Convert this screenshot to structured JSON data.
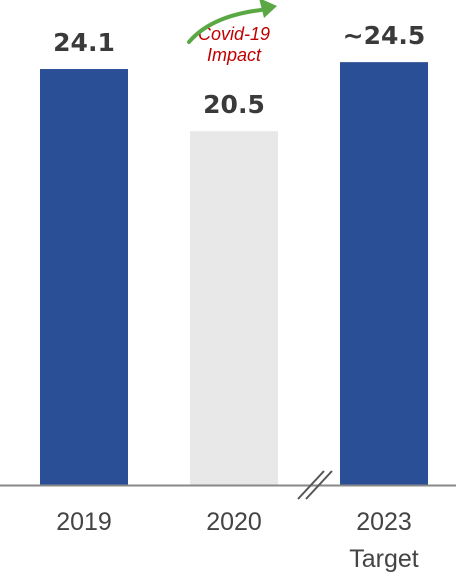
{
  "chart_data": {
    "type": "bar",
    "categories": [
      [
        "2019"
      ],
      [
        "2020"
      ],
      [
        "2023",
        "Target"
      ]
    ],
    "values": [
      24.1,
      20.5,
      24.5
    ],
    "value_labels": [
      "24.1",
      "20.5",
      "~24.5"
    ],
    "annotations": [
      {
        "category_index": 1,
        "text": [
          "Covid-19",
          "Impact"
        ]
      }
    ],
    "axis_break_between": [
      1,
      2
    ],
    "trend_arrow": {
      "from": 1,
      "to": 2
    },
    "title": "",
    "xlabel": "",
    "ylabel": "",
    "grid": false,
    "colors": {
      "primary_bar": "#2a4f97",
      "highlight_bar": "#e8e8e8",
      "arrow": "#5aa844",
      "annotation": "#c00000",
      "axis": "#888888",
      "value_text": "#3a3a3a",
      "category_text": "#444444"
    },
    "bar_styles": [
      "primary",
      "highlight",
      "primary"
    ]
  }
}
